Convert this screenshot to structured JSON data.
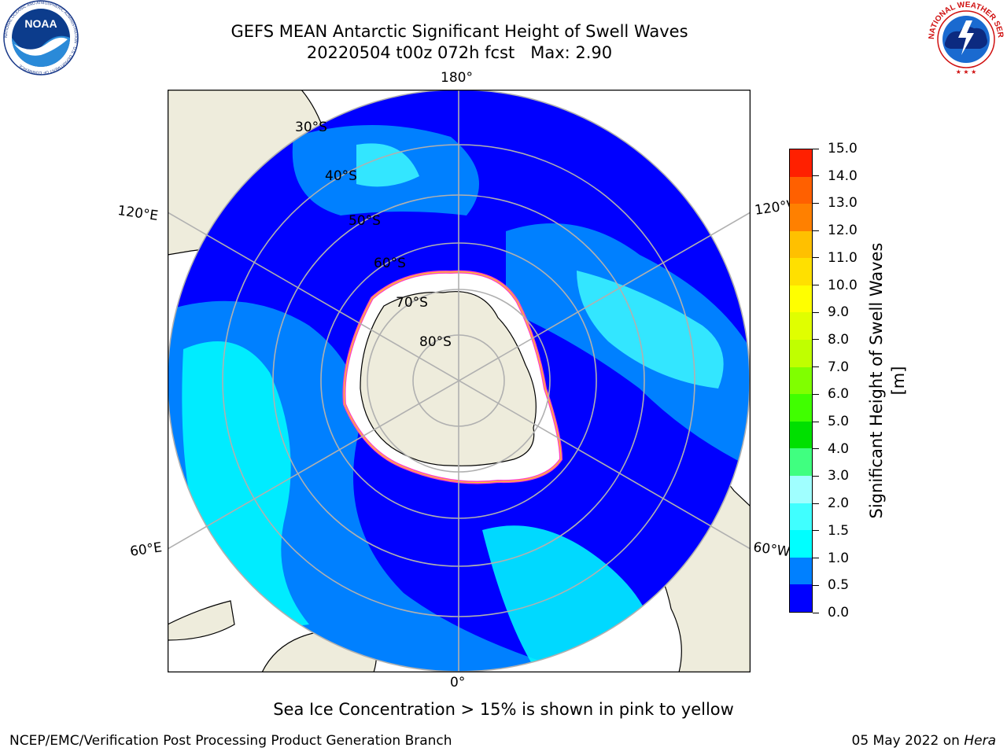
{
  "title_line1": "GEFS MEAN Antarctic Significant Height of Swell Waves",
  "title_line2_run": "20220504 t00z 072h fcst",
  "title_line2_max": "Max: 2.90",
  "logos": {
    "left": {
      "name": "noaa-logo",
      "text": "NOAA",
      "ring_text": "NATIONAL OCEANIC AND ATMOSPHERIC ADMINISTRATION · U.S. DEPARTMENT OF COMMERCE"
    },
    "right": {
      "name": "nws-logo",
      "ring_text": "NATIONAL WEATHER SERVICE"
    }
  },
  "map": {
    "projection": "south-polar-stereographic",
    "longitude_labels": {
      "top": "180°",
      "bottom": "0°",
      "upper_left": "120°E",
      "upper_right": "120°W",
      "lower_left": "60°E",
      "lower_right": "60°W"
    },
    "latitude_labels": [
      "30°S",
      "40°S",
      "50°S",
      "60°S",
      "70°S",
      "80°S"
    ],
    "colors": {
      "land": "#eeecdc",
      "ice_free_white": "#ffffff",
      "ice_edge": [
        "#ff40c0",
        "#ffd020"
      ],
      "grid": "#b0b0b0"
    }
  },
  "colorbar": {
    "label": "Significant Height of Swell Waves [m]",
    "ticks": [
      "0.0",
      "0.5",
      "1.0",
      "1.5",
      "2.0",
      "3.0",
      "4.0",
      "5.0",
      "6.0",
      "7.0",
      "8.0",
      "9.0",
      "10.0",
      "11.0",
      "12.0",
      "13.0",
      "14.0",
      "15.0"
    ],
    "colors": [
      "#0000ff",
      "#0080ff",
      "#00ffff",
      "#40ffff",
      "#a0ffff",
      "#40ff80",
      "#00e000",
      "#40ff00",
      "#80ff00",
      "#c0ff00",
      "#e0ff00",
      "#ffff00",
      "#ffe000",
      "#ffc000",
      "#ff8000",
      "#ff6000",
      "#ff2000"
    ]
  },
  "note": "Sea Ice Concentration > 15% is shown in pink to yellow",
  "footer_left": "NCEP/EMC/Verification Post Processing Product Generation Branch",
  "footer_date": "05 May 2022 on",
  "footer_machine": "Hera"
}
